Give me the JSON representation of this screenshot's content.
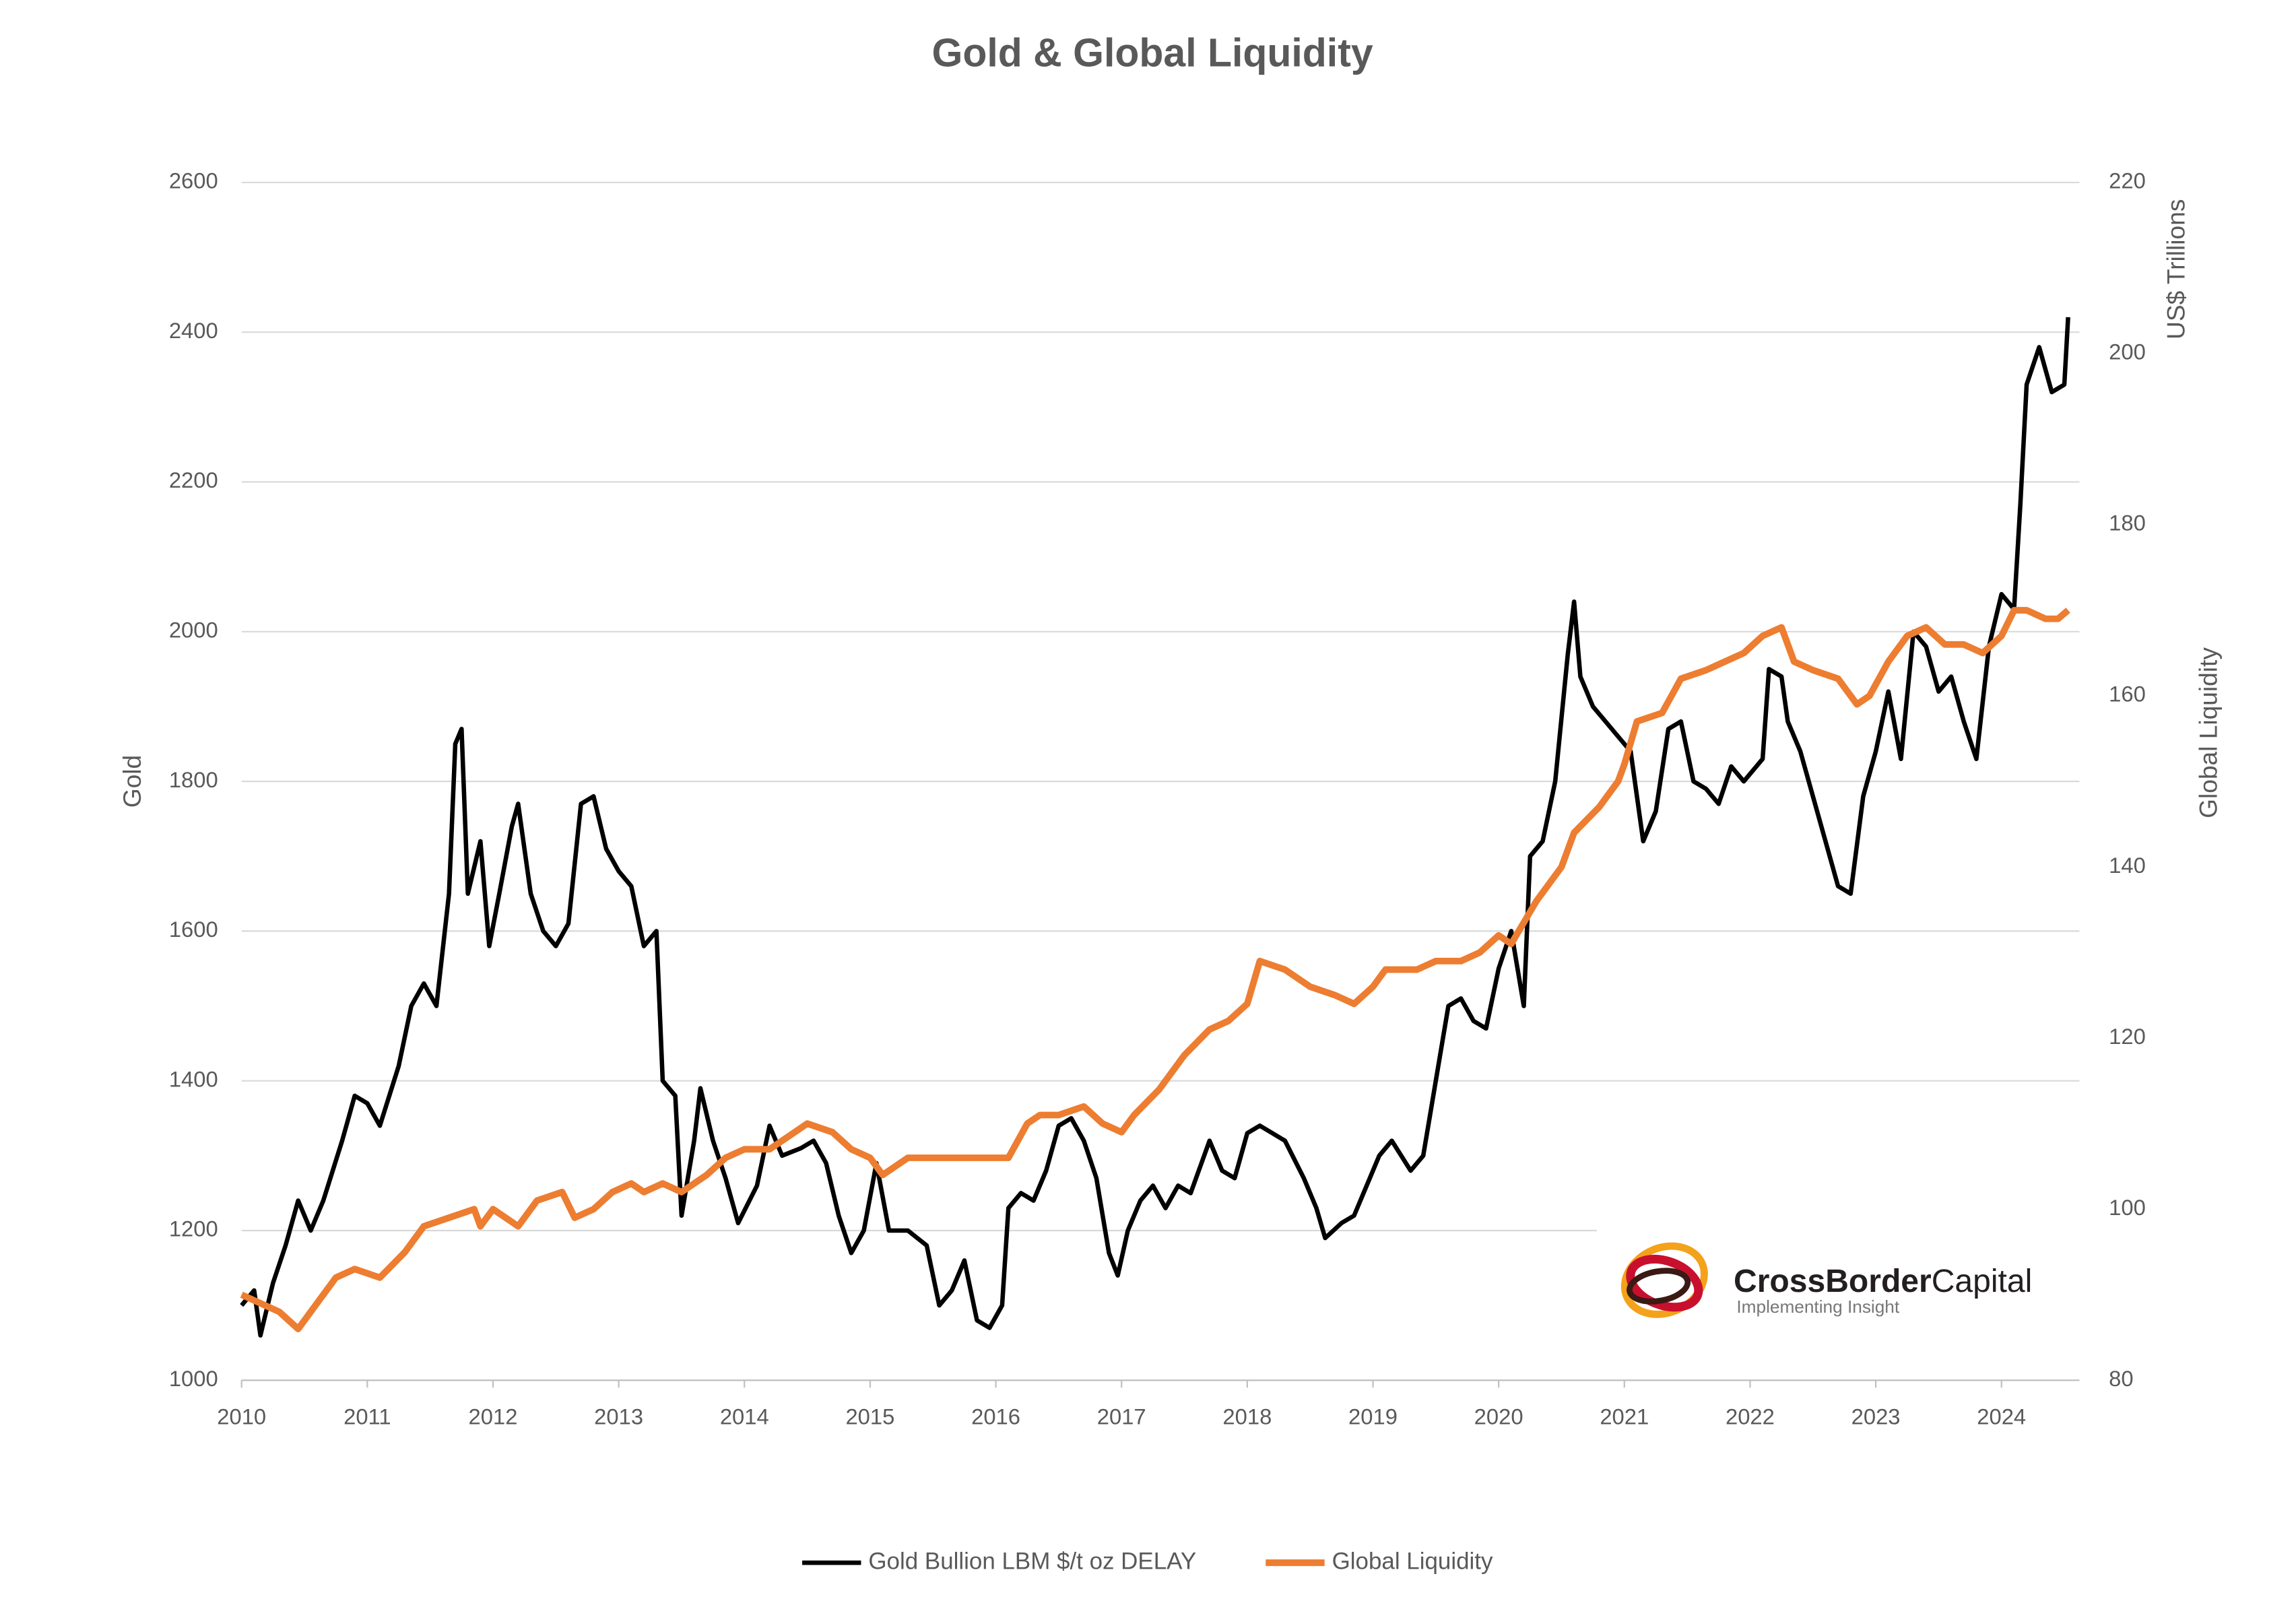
{
  "chart_data": {
    "type": "line",
    "title": "Gold & Global Liquidity",
    "ylabel": "Gold",
    "y2label": "Global Liquidity",
    "y2_unit": "US$ Trillions",
    "xlim": [
      2010,
      2024.62
    ],
    "xticks": [
      2010,
      2011,
      2012,
      2013,
      2014,
      2015,
      2016,
      2017,
      2018,
      2019,
      2020,
      2021,
      2022,
      2023,
      2024
    ],
    "ylim": [
      1000,
      2600
    ],
    "yticks": [
      1000,
      1200,
      1400,
      1600,
      1800,
      2000,
      2200,
      2400,
      2600
    ],
    "y2lim": [
      80,
      220
    ],
    "y2ticks": [
      80,
      100,
      120,
      140,
      160,
      180,
      200,
      220
    ],
    "grid": true,
    "legend": "bottom",
    "series": [
      {
        "name": "Gold Bullion LBM $/t oz DELAY",
        "color": "#000000",
        "axis": "y",
        "x": [
          2010,
          2010.1,
          2010.15,
          2010.25,
          2010.35,
          2010.45,
          2010.55,
          2010.65,
          2010.8,
          2010.9,
          2011,
          2011.1,
          2011.25,
          2011.35,
          2011.45,
          2011.55,
          2011.65,
          2011.7,
          2011.75,
          2011.8,
          2011.9,
          2011.97,
          2012.05,
          2012.15,
          2012.2,
          2012.3,
          2012.4,
          2012.5,
          2012.6,
          2012.7,
          2012.8,
          2012.9,
          2013,
          2013.1,
          2013.2,
          2013.3,
          2013.35,
          2013.45,
          2013.5,
          2013.6,
          2013.65,
          2013.75,
          2013.85,
          2013.95,
          2014.1,
          2014.2,
          2014.3,
          2014.45,
          2014.55,
          2014.65,
          2014.75,
          2014.85,
          2014.95,
          2015.05,
          2015.15,
          2015.3,
          2015.45,
          2015.55,
          2015.65,
          2015.75,
          2015.85,
          2015.95,
          2016.05,
          2016.1,
          2016.2,
          2016.3,
          2016.4,
          2016.5,
          2016.6,
          2016.7,
          2016.8,
          2016.9,
          2016.97,
          2017.05,
          2017.15,
          2017.25,
          2017.35,
          2017.45,
          2017.55,
          2017.7,
          2017.8,
          2017.9,
          2018,
          2018.1,
          2018.2,
          2018.3,
          2018.45,
          2018.55,
          2018.62,
          2018.75,
          2018.85,
          2018.95,
          2019.05,
          2019.15,
          2019.3,
          2019.4,
          2019.5,
          2019.6,
          2019.7,
          2019.8,
          2019.9,
          2020,
          2020.1,
          2020.2,
          2020.25,
          2020.35,
          2020.45,
          2020.55,
          2020.6,
          2020.65,
          2020.75,
          2020.85,
          2020.95,
          2021.05,
          2021.15,
          2021.25,
          2021.35,
          2021.45,
          2021.55,
          2021.65,
          2021.75,
          2021.85,
          2021.95,
          2022.1,
          2022.15,
          2022.25,
          2022.3,
          2022.4,
          2022.5,
          2022.6,
          2022.7,
          2022.8,
          2022.9,
          2023,
          2023.1,
          2023.2,
          2023.3,
          2023.4,
          2023.5,
          2023.6,
          2023.7,
          2023.8,
          2023.9,
          2024,
          2024.1,
          2024.15,
          2024.2,
          2024.3,
          2024.4,
          2024.5,
          2024.53
        ],
        "values": [
          1100,
          1120,
          1060,
          1130,
          1180,
          1240,
          1200,
          1240,
          1320,
          1380,
          1370,
          1340,
          1420,
          1500,
          1530,
          1500,
          1650,
          1850,
          1870,
          1650,
          1720,
          1580,
          1650,
          1740,
          1770,
          1650,
          1600,
          1580,
          1610,
          1770,
          1780,
          1710,
          1680,
          1660,
          1580,
          1600,
          1400,
          1380,
          1220,
          1320,
          1390,
          1320,
          1270,
          1210,
          1260,
          1340,
          1300,
          1310,
          1320,
          1290,
          1220,
          1170,
          1200,
          1290,
          1200,
          1200,
          1180,
          1100,
          1120,
          1160,
          1080,
          1070,
          1100,
          1230,
          1250,
          1240,
          1280,
          1340,
          1350,
          1320,
          1270,
          1170,
          1140,
          1200,
          1240,
          1260,
          1230,
          1260,
          1250,
          1320,
          1280,
          1270,
          1330,
          1340,
          1330,
          1320,
          1270,
          1230,
          1190,
          1210,
          1220,
          1260,
          1300,
          1320,
          1280,
          1300,
          1400,
          1500,
          1510,
          1480,
          1470,
          1550,
          1600,
          1500,
          1700,
          1720,
          1800,
          1970,
          2040,
          1940,
          1900,
          1880,
          1860,
          1840,
          1720,
          1760,
          1870,
          1880,
          1800,
          1790,
          1770,
          1820,
          1800,
          1830,
          1950,
          1940,
          1880,
          1840,
          1780,
          1720,
          1660,
          1650,
          1780,
          1840,
          1920,
          1830,
          2000,
          1980,
          1920,
          1940,
          1880,
          1830,
          1980,
          2050,
          2030,
          2170,
          2330,
          2380,
          2320,
          2330,
          2420
        ]
      },
      {
        "name": "Global Liquidity",
        "color": "#ED7D31",
        "axis": "y2",
        "x": [
          2010,
          2010.3,
          2010.45,
          2010.6,
          2010.75,
          2010.9,
          2011.1,
          2011.3,
          2011.45,
          2011.65,
          2011.85,
          2011.9,
          2012,
          2012.2,
          2012.35,
          2012.55,
          2012.65,
          2012.8,
          2012.95,
          2013.1,
          2013.2,
          2013.35,
          2013.5,
          2013.7,
          2013.85,
          2014,
          2014.2,
          2014.4,
          2014.5,
          2014.7,
          2014.85,
          2015,
          2015.1,
          2015.3,
          2015.5,
          2015.7,
          2015.9,
          2016.1,
          2016.25,
          2016.35,
          2016.5,
          2016.7,
          2016.85,
          2017,
          2017.1,
          2017.3,
          2017.5,
          2017.7,
          2017.85,
          2018,
          2018.1,
          2018.3,
          2018.5,
          2018.7,
          2018.85,
          2019,
          2019.1,
          2019.35,
          2019.5,
          2019.7,
          2019.85,
          2020,
          2020.1,
          2020.3,
          2020.5,
          2020.6,
          2020.8,
          2020.95,
          2021,
          2021.1,
          2021.3,
          2021.45,
          2021.65,
          2021.8,
          2021.95,
          2022.1,
          2022.25,
          2022.35,
          2022.5,
          2022.7,
          2022.85,
          2022.95,
          2023.1,
          2023.25,
          2023.4,
          2023.55,
          2023.7,
          2023.85,
          2024,
          2024.1,
          2024.2,
          2024.35,
          2024.45,
          2024.53
        ],
        "values": [
          90,
          88,
          86,
          89,
          92,
          93,
          92,
          95,
          98,
          99,
          100,
          98,
          100,
          98,
          101,
          102,
          99,
          100,
          102,
          103,
          102,
          103,
          102,
          104,
          106,
          107,
          107,
          109,
          110,
          109,
          107,
          106,
          104,
          106,
          106,
          106,
          106,
          106,
          110,
          111,
          111,
          112,
          110,
          109,
          111,
          114,
          118,
          121,
          122,
          124,
          129,
          128,
          126,
          125,
          124,
          126,
          128,
          128,
          129,
          129,
          130,
          132,
          131,
          136,
          140,
          144,
          147,
          150,
          152,
          157,
          158,
          162,
          163,
          164,
          165,
          167,
          168,
          164,
          163,
          162,
          159,
          160,
          164,
          167,
          168,
          166,
          166,
          165,
          167,
          170,
          170,
          169,
          169,
          170
        ]
      }
    ]
  },
  "logo": {
    "name_bold": "CrossBorder",
    "name_rest": "Capital",
    "tagline": "Implementing Insight"
  }
}
